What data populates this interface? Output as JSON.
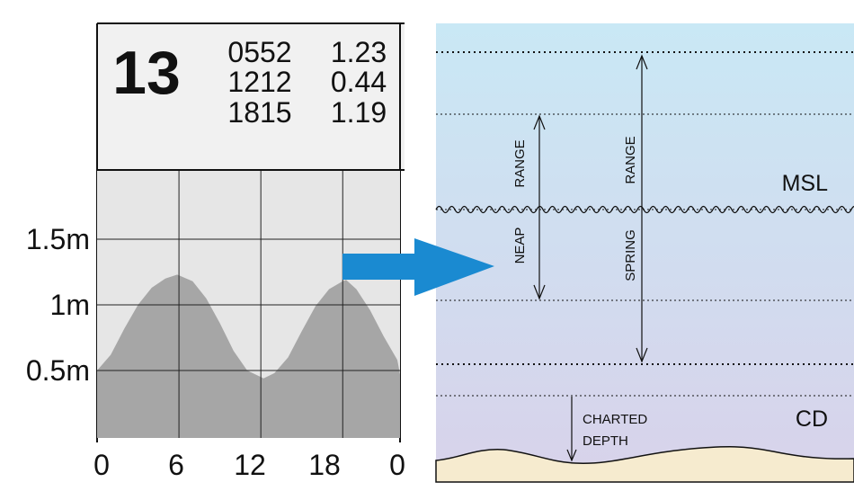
{
  "tide_table": {
    "day": "13",
    "rows": [
      {
        "time": "0552",
        "height": "1.23"
      },
      {
        "time": "1212",
        "height": "0.44"
      },
      {
        "time": "1815",
        "height": "1.19"
      }
    ]
  },
  "chart_data": {
    "type": "area",
    "title": "",
    "xlabel": "",
    "ylabel": "",
    "x_ticks": [
      "0",
      "6",
      "12",
      "18",
      "0"
    ],
    "y_ticks": [
      "1.5m",
      "1m",
      "0.5m"
    ],
    "x_range": [
      0,
      24
    ],
    "y_range": [
      0,
      1.5
    ],
    "series": [
      {
        "x": [
          0,
          1,
          2,
          3,
          4,
          5,
          5.87,
          7,
          8,
          9,
          10,
          11,
          12,
          12.2,
          13,
          14,
          15,
          16,
          17,
          18,
          18.25,
          19,
          20,
          21,
          22,
          23,
          24
        ],
        "values": [
          0.5,
          0.62,
          0.82,
          1.0,
          1.13,
          1.2,
          1.23,
          1.18,
          1.05,
          0.86,
          0.65,
          0.5,
          0.45,
          0.44,
          0.48,
          0.6,
          0.8,
          0.99,
          1.12,
          1.18,
          1.19,
          1.12,
          0.96,
          0.76,
          0.58,
          0.47,
          0.45
        ]
      }
    ],
    "grid": true,
    "fill_color": "#a6a6a6"
  },
  "colors": {
    "arrow": "#1a8ad1",
    "water_top": "#c9e8f5",
    "water_bottom": "#d8d2ea",
    "seabed": "#f6ebcf",
    "panel_bg": "#f1f1f1",
    "chart_bg": "#e6e6e6"
  },
  "diagram": {
    "msl_label": "MSL",
    "cd_label": "CD",
    "neap_range_top": "RANGE",
    "neap_range_bottom": "NEAP",
    "spring_range_top": "RANGE",
    "spring_range_bottom": "SPRING",
    "charted_depth_line1": "CHARTED",
    "charted_depth_line2": "DEPTH"
  }
}
